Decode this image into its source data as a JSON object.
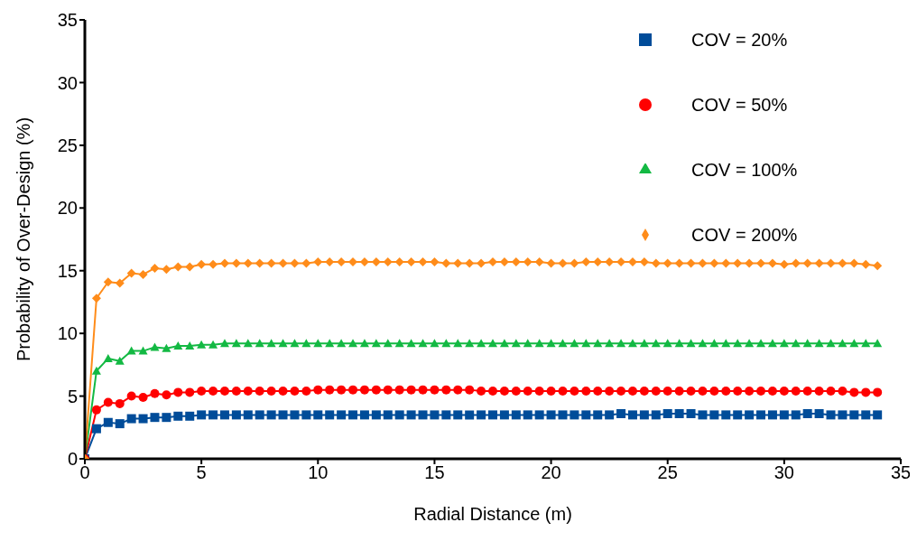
{
  "chart_data": {
    "type": "line",
    "xlabel": "Radial Distance (m)",
    "ylabel": "Probability of Over-Design (%)",
    "x": [
      0,
      0.5,
      1,
      1.5,
      2,
      2.5,
      3,
      3.5,
      4,
      4.5,
      5,
      5.5,
      6,
      6.5,
      7,
      7.5,
      8,
      8.5,
      9,
      9.5,
      10,
      10.5,
      11,
      11.5,
      12,
      12.5,
      13,
      13.5,
      14,
      14.5,
      15,
      15.5,
      16,
      16.5,
      17,
      17.5,
      18,
      18.5,
      19,
      19.5,
      20,
      20.5,
      21,
      21.5,
      22,
      22.5,
      23,
      23.5,
      24,
      24.5,
      25,
      25.5,
      26,
      26.5,
      27,
      27.5,
      28,
      28.5,
      29,
      29.5,
      30,
      30.5,
      31,
      31.5,
      32,
      32.5,
      33,
      33.5,
      34
    ],
    "series": [
      {
        "name": "COV = 20%",
        "color": "#004c99",
        "marker": "square",
        "values": [
          0,
          2.4,
          2.9,
          2.8,
          3.2,
          3.2,
          3.3,
          3.3,
          3.4,
          3.4,
          3.5,
          3.5,
          3.5,
          3.5,
          3.5,
          3.5,
          3.5,
          3.5,
          3.5,
          3.5,
          3.5,
          3.5,
          3.5,
          3.5,
          3.5,
          3.5,
          3.5,
          3.5,
          3.5,
          3.5,
          3.5,
          3.5,
          3.5,
          3.5,
          3.5,
          3.5,
          3.5,
          3.5,
          3.5,
          3.5,
          3.5,
          3.5,
          3.5,
          3.5,
          3.5,
          3.5,
          3.6,
          3.5,
          3.5,
          3.5,
          3.6,
          3.6,
          3.6,
          3.5,
          3.5,
          3.5,
          3.5,
          3.5,
          3.5,
          3.5,
          3.5,
          3.5,
          3.6,
          3.6,
          3.5,
          3.5,
          3.5,
          3.5,
          3.5
        ]
      },
      {
        "name": "COV = 50%",
        "color": "#ff0000",
        "marker": "circle",
        "values": [
          0,
          3.9,
          4.5,
          4.4,
          5.0,
          4.9,
          5.2,
          5.1,
          5.3,
          5.3,
          5.4,
          5.4,
          5.4,
          5.4,
          5.4,
          5.4,
          5.4,
          5.4,
          5.4,
          5.4,
          5.5,
          5.5,
          5.5,
          5.5,
          5.5,
          5.5,
          5.5,
          5.5,
          5.5,
          5.5,
          5.5,
          5.5,
          5.5,
          5.5,
          5.4,
          5.4,
          5.4,
          5.4,
          5.4,
          5.4,
          5.4,
          5.4,
          5.4,
          5.4,
          5.4,
          5.4,
          5.4,
          5.4,
          5.4,
          5.4,
          5.4,
          5.4,
          5.4,
          5.4,
          5.4,
          5.4,
          5.4,
          5.4,
          5.4,
          5.4,
          5.4,
          5.4,
          5.4,
          5.4,
          5.4,
          5.4,
          5.3,
          5.3,
          5.3
        ]
      },
      {
        "name": "COV = 100%",
        "color": "#13b943",
        "marker": "triangle",
        "values": [
          0,
          7.0,
          8.0,
          7.8,
          8.6,
          8.6,
          8.9,
          8.8,
          9.0,
          9.0,
          9.1,
          9.1,
          9.2,
          9.2,
          9.2,
          9.2,
          9.2,
          9.2,
          9.2,
          9.2,
          9.2,
          9.2,
          9.2,
          9.2,
          9.2,
          9.2,
          9.2,
          9.2,
          9.2,
          9.2,
          9.2,
          9.2,
          9.2,
          9.2,
          9.2,
          9.2,
          9.2,
          9.2,
          9.2,
          9.2,
          9.2,
          9.2,
          9.2,
          9.2,
          9.2,
          9.2,
          9.2,
          9.2,
          9.2,
          9.2,
          9.2,
          9.2,
          9.2,
          9.2,
          9.2,
          9.2,
          9.2,
          9.2,
          9.2,
          9.2,
          9.2,
          9.2,
          9.2,
          9.2,
          9.2,
          9.2,
          9.2,
          9.2,
          9.2
        ]
      },
      {
        "name": "COV = 200%",
        "color": "#ff8c1a",
        "marker": "diamond",
        "values": [
          0,
          12.8,
          14.1,
          14.0,
          14.8,
          14.7,
          15.2,
          15.1,
          15.3,
          15.3,
          15.5,
          15.5,
          15.6,
          15.6,
          15.6,
          15.6,
          15.6,
          15.6,
          15.6,
          15.6,
          15.7,
          15.7,
          15.7,
          15.7,
          15.7,
          15.7,
          15.7,
          15.7,
          15.7,
          15.7,
          15.7,
          15.6,
          15.6,
          15.6,
          15.6,
          15.7,
          15.7,
          15.7,
          15.7,
          15.7,
          15.6,
          15.6,
          15.6,
          15.7,
          15.7,
          15.7,
          15.7,
          15.7,
          15.7,
          15.6,
          15.6,
          15.6,
          15.6,
          15.6,
          15.6,
          15.6,
          15.6,
          15.6,
          15.6,
          15.6,
          15.5,
          15.6,
          15.6,
          15.6,
          15.6,
          15.6,
          15.6,
          15.5,
          15.4
        ]
      }
    ],
    "xlim": [
      0,
      35
    ],
    "xticks": [
      0,
      5,
      10,
      15,
      20,
      25,
      30,
      35
    ],
    "ylim": [
      0,
      35
    ],
    "yticks": [
      0,
      5,
      10,
      15,
      20,
      25,
      30,
      35
    ],
    "grid": false,
    "legend": "top right",
    "line_style": "solid"
  }
}
